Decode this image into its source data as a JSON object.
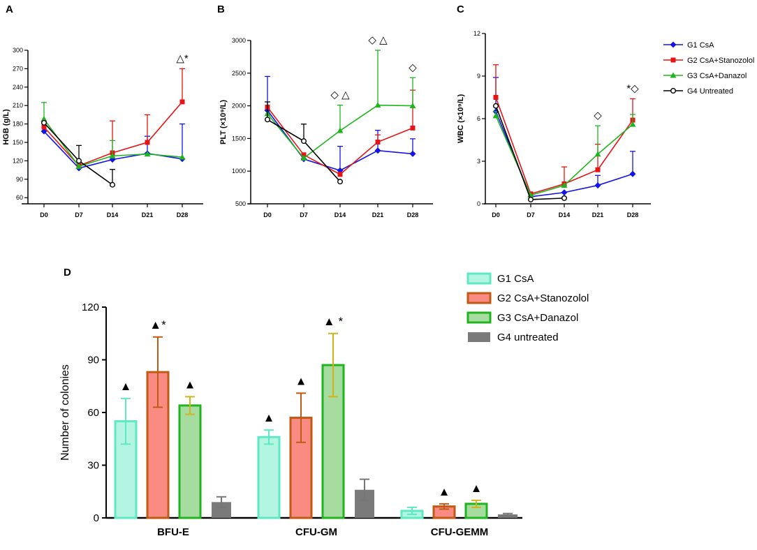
{
  "colors": {
    "g1": "#1414e6",
    "g2": "#e61414",
    "g3": "#1fb51f",
    "g4": "#000000",
    "b1_fill": "#b3f5e1",
    "b1_edge": "#5fe8c4",
    "b2_fill": "#f98b82",
    "b2_edge": "#c05a14",
    "b3_fill": "#a7dca0",
    "b3_edge": "#1fb51f",
    "b4_fill": "#7a7a7a",
    "b4_edge": "#6b6b6b",
    "err1": "#5fe8c4",
    "err2": "#c05a14",
    "err3": "#d4b21c",
    "err4": "#777777"
  },
  "chart_data": [
    {
      "panel": "A",
      "type": "line",
      "ylabel": "HGB (g/L)",
      "categories": [
        "D0",
        "D7",
        "D14",
        "D21",
        "D28"
      ],
      "ylim": [
        50,
        300
      ],
      "yticks": [
        60,
        90,
        120,
        150,
        180,
        210,
        240,
        270,
        300
      ],
      "series": [
        {
          "name": "G1 CsA",
          "values": [
            168,
            108,
            122,
            132,
            123
          ],
          "err": [
            0,
            0,
            0,
            28,
            57
          ]
        },
        {
          "name": "G2 CsA+Stanozolol",
          "values": [
            175,
            112,
            133,
            150,
            216
          ],
          "err": [
            0,
            0,
            52,
            45,
            54
          ]
        },
        {
          "name": "G3 CsA+Danazol",
          "values": [
            188,
            111,
            128,
            131,
            126
          ],
          "err": [
            27,
            0,
            25,
            0,
            0
          ]
        },
        {
          "name": "G4 Untreated",
          "values": [
            182,
            120,
            81,
            null,
            null
          ],
          "err": [
            0,
            25,
            25,
            null,
            null
          ]
        }
      ],
      "annotations": [
        {
          "at": "D28",
          "text": "△*"
        }
      ]
    },
    {
      "panel": "B",
      "type": "line",
      "ylabel": "PLT (×10⁹/L)",
      "categories": [
        "D0",
        "D7",
        "D14",
        "D21",
        "D28"
      ],
      "ylim": [
        500,
        3000
      ],
      "yticks": [
        500,
        1000,
        1500,
        2000,
        2500,
        3000
      ],
      "series": [
        {
          "name": "G1 CsA",
          "values": [
            1930,
            1185,
            1010,
            1315,
            1265
          ],
          "err": [
            520,
            0,
            370,
            310,
            230
          ]
        },
        {
          "name": "G2 CsA+Stanozolol",
          "values": [
            1980,
            1250,
            950,
            1445,
            1660
          ],
          "err": [
            0,
            0,
            0,
            110,
            580
          ]
        },
        {
          "name": "G3 CsA+Danazol",
          "values": [
            1880,
            1200,
            1620,
            2010,
            2000
          ],
          "err": [
            0,
            0,
            390,
            840,
            430
          ]
        },
        {
          "name": "G4 Untreated",
          "values": [
            1790,
            1460,
            840,
            null,
            null
          ],
          "err": [
            270,
            260,
            0,
            null,
            null
          ]
        }
      ],
      "annotations": [
        {
          "at": "D14",
          "text": "◇ △"
        },
        {
          "at": "D21",
          "text": "◇ △"
        },
        {
          "at": "D28",
          "text": "◇"
        }
      ]
    },
    {
      "panel": "C",
      "type": "line",
      "ylabel": "WBC (×10⁹/L)",
      "categories": [
        "D0",
        "D7",
        "D14",
        "D21",
        "D28"
      ],
      "ylim": [
        0,
        12
      ],
      "yticks": [
        0,
        3,
        6,
        9,
        12
      ],
      "series": [
        {
          "name": "G1 CsA",
          "values": [
            6.5,
            0.5,
            0.8,
            1.3,
            2.1
          ],
          "err": [
            2.4,
            0,
            0,
            0.7,
            1.6
          ]
        },
        {
          "name": "G2 CsA+Stanozolol",
          "values": [
            7.5,
            0.7,
            1.4,
            2.4,
            5.9
          ],
          "err": [
            2.3,
            0,
            1.2,
            1.8,
            1.5
          ]
        },
        {
          "name": "G3 CsA+Danazol",
          "values": [
            6.2,
            0.6,
            1.3,
            3.5,
            5.6
          ],
          "err": [
            0.3,
            0,
            0,
            2.0,
            0.7
          ]
        },
        {
          "name": "G4 Untreated",
          "values": [
            6.9,
            0.3,
            0.4,
            null,
            null
          ],
          "err": [
            0,
            0,
            0,
            null,
            null
          ]
        }
      ],
      "annotations": [
        {
          "at": "D21",
          "text": "◇"
        },
        {
          "at": "D28",
          "text": "*◇"
        }
      ]
    },
    {
      "panel": "D",
      "type": "bar",
      "ylabel": "Number of colonies",
      "categories": [
        "BFU-E",
        "CFU-GM",
        "CFU-GEMM"
      ],
      "ylim": [
        0,
        120
      ],
      "yticks": [
        0,
        30,
        60,
        90,
        120
      ],
      "series": [
        {
          "name": "G1 CsA",
          "values": [
            55,
            46,
            4
          ],
          "err": [
            13,
            4,
            2
          ]
        },
        {
          "name": "G2 CsA+Stanozolol",
          "values": [
            83,
            57,
            6.5
          ],
          "err": [
            20,
            14,
            1.5
          ]
        },
        {
          "name": "G3 CsA+Danazol",
          "values": [
            64,
            87,
            8
          ],
          "err": [
            5,
            18,
            2
          ]
        },
        {
          "name": "G4 untreated",
          "values": [
            9,
            16,
            2
          ],
          "err": [
            3,
            6,
            0.5
          ]
        }
      ],
      "annotations": [
        {
          "category": "BFU-E",
          "series": 0,
          "text": "▲"
        },
        {
          "category": "BFU-E",
          "series": 1,
          "text": "▲*"
        },
        {
          "category": "BFU-E",
          "series": 2,
          "text": "▲"
        },
        {
          "category": "CFU-GM",
          "series": 0,
          "text": "▲"
        },
        {
          "category": "CFU-GM",
          "series": 1,
          "text": "▲"
        },
        {
          "category": "CFU-GM",
          "series": 2,
          "text": "▲ *"
        },
        {
          "category": "CFU-GEMM",
          "series": 1,
          "text": "▲"
        },
        {
          "category": "CFU-GEMM",
          "series": 2,
          "text": "▲"
        }
      ]
    }
  ],
  "legend_top": [
    "G1 CsA",
    "G2 CsA+Stanozolol",
    "G3 CsA+Danazol",
    "G4 Untreated"
  ],
  "legend_bottom": [
    "G1 CsA",
    "G2 CsA+Stanozolol",
    "G3 CsA+Danazol",
    "G4 untreated"
  ]
}
